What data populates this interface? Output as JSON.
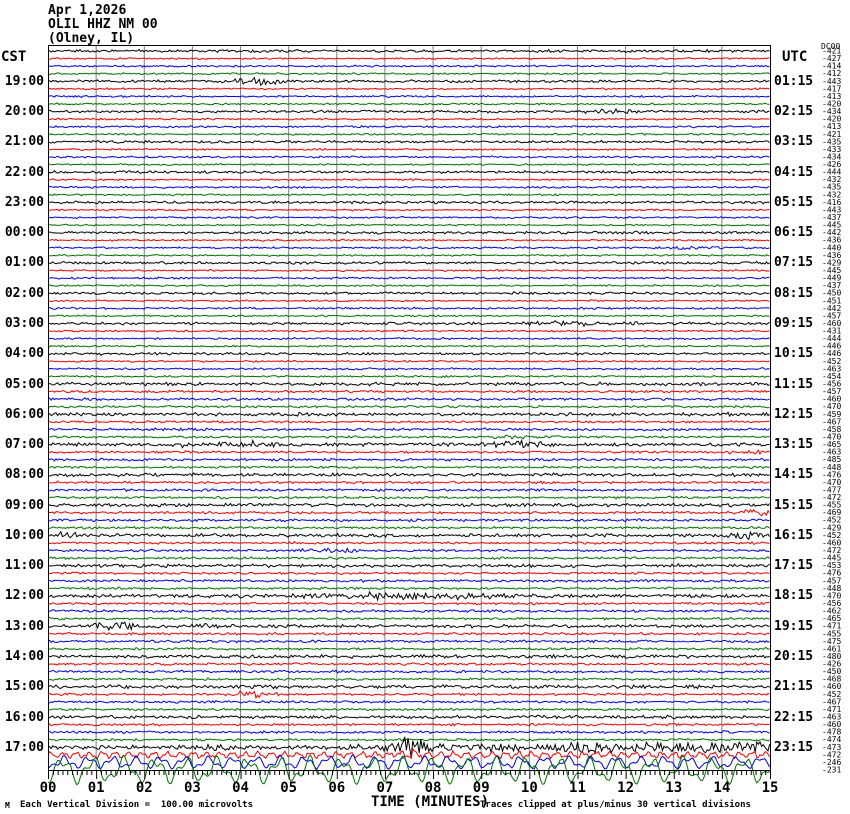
{
  "header": {
    "date": "Apr 1,2026",
    "station": "OLIL HHZ NM 00",
    "location": "(Olney, IL)"
  },
  "axes": {
    "left_label": "CST",
    "right_label": "UTC",
    "dc_header": "DC00",
    "x_title": "TIME (MINUTES)",
    "x_ticks": [
      "00",
      "01",
      "02",
      "03",
      "04",
      "05",
      "06",
      "07",
      "08",
      "09",
      "10",
      "11",
      "12",
      "13",
      "14",
      "15"
    ],
    "minor_ticks_per_major": 10
  },
  "footer": {
    "left": "Each Vertical Division =  100.00 microvolts",
    "right": "Traces clipped at plus/minus 30 vertical divisions",
    "corner_mark": "M"
  },
  "chart_data": {
    "type": "line",
    "title": "Helicorder (webicorder) record, station OLIL HHZ NM 00, Olney IL, Apr 1,2026",
    "x_axis": {
      "label": "TIME (MINUTES)",
      "range": [
        0,
        15
      ]
    },
    "rows": {
      "count": 96,
      "minutes_per_row": 15,
      "rows_per_hour": 4,
      "first_labeled_row": 4,
      "color_cycle": [
        "#000000",
        "#ee0000",
        "#0000dd",
        "#007000"
      ]
    },
    "grid_color": "#808080",
    "left_time_labels": [
      "19:00",
      "20:00",
      "21:00",
      "22:00",
      "23:00",
      "00:00",
      "01:00",
      "02:00",
      "03:00",
      "04:00",
      "05:00",
      "06:00",
      "07:00",
      "08:00",
      "09:00",
      "10:00",
      "11:00",
      "12:00",
      "13:00",
      "14:00",
      "15:00",
      "16:00",
      "17:00"
    ],
    "right_time_labels": [
      "01:15",
      "02:15",
      "03:15",
      "04:15",
      "05:15",
      "06:15",
      "07:15",
      "08:15",
      "09:15",
      "10:15",
      "11:15",
      "12:15",
      "13:15",
      "14:15",
      "15:15",
      "16:15",
      "17:15",
      "18:15",
      "19:15",
      "20:15",
      "21:15",
      "22:15",
      "23:15"
    ],
    "dc_offsets": [
      -421,
      -427,
      -414,
      -412,
      -443,
      -417,
      -413,
      -420,
      -434,
      -420,
      -413,
      -421,
      -435,
      -433,
      -434,
      -426,
      -444,
      -432,
      -435,
      -432,
      -416,
      -443,
      -437,
      -445,
      -442,
      -436,
      -440,
      -436,
      -429,
      -445,
      -449,
      -437,
      -450,
      -451,
      -442,
      -457,
      -460,
      -431,
      -444,
      -446,
      -446,
      -452,
      -463,
      -454,
      -456,
      -457,
      -460,
      -470,
      -459,
      -467,
      -458,
      -470,
      -465,
      -463,
      -485,
      -448,
      -476,
      -470,
      -477,
      -472,
      -455,
      -469,
      -452,
      -429,
      -452,
      -460,
      -472,
      -445,
      -453,
      -476,
      -457,
      -448,
      -470,
      -456,
      -462,
      -465,
      -471,
      -455,
      -475,
      -461,
      -480,
      -426,
      -450,
      -468,
      -460,
      -452,
      -467,
      -471,
      -463,
      -460,
      -478,
      -474,
      -473,
      -472,
      -246,
      -231
    ],
    "noise": {
      "seed": 12345,
      "base_amp_by_color": [
        1.5,
        1.05,
        1.15,
        1.05
      ],
      "amp_boost": {
        "from_row": 44,
        "to_row": 91,
        "mult": 1.3
      },
      "row_amp_overrides": {
        "92": 1.7,
        "93": 1.0,
        "94": 0.9,
        "95": 0.9
      }
    },
    "waves": {
      "93": {
        "amp": 3.2,
        "wl": 13
      },
      "94": {
        "amp": 6.0,
        "wl": 24
      },
      "95": {
        "amp": 13.0,
        "wl": 31
      }
    },
    "events": {
      "4": [
        [
          4.35,
          0.45,
          4.0
        ]
      ],
      "8": [
        [
          11.6,
          0.6,
          2.2
        ]
      ],
      "26": [
        [
          13.4,
          0.5,
          1.8
        ]
      ],
      "36": [
        [
          10.9,
          1.1,
          2.0
        ]
      ],
      "51": [
        [
          9.75,
          0.45,
          2.2
        ]
      ],
      "52": [
        [
          2.95,
          0.3,
          1.8
        ],
        [
          4.25,
          0.5,
          2.8
        ],
        [
          9.75,
          0.6,
          3.2
        ]
      ],
      "53": [
        [
          14.55,
          0.35,
          2.8
        ]
      ],
      "61": [
        [
          14.7,
          0.35,
          3.2
        ]
      ],
      "64": [
        [
          0.4,
          0.35,
          2.6
        ],
        [
          14.6,
          0.4,
          3.6
        ]
      ],
      "66": [
        [
          5.95,
          0.5,
          2.2
        ]
      ],
      "72": [
        [
          7.6,
          2.0,
          2.6
        ]
      ],
      "76": [
        [
          1.45,
          0.6,
          3.2
        ],
        [
          3.35,
          0.35,
          1.8
        ]
      ],
      "85": [
        [
          4.25,
          0.4,
          3.2
        ]
      ],
      "92": [
        [
          3.45,
          0.4,
          2.2
        ],
        [
          7.52,
          0.32,
          9.0
        ],
        [
          9.0,
          2.2,
          3.2
        ],
        [
          12.0,
          1.8,
          3.6
        ],
        [
          14.3,
          1.0,
          4.0
        ]
      ],
      "93": [
        [
          7.52,
          0.28,
          4.5
        ]
      ]
    }
  }
}
